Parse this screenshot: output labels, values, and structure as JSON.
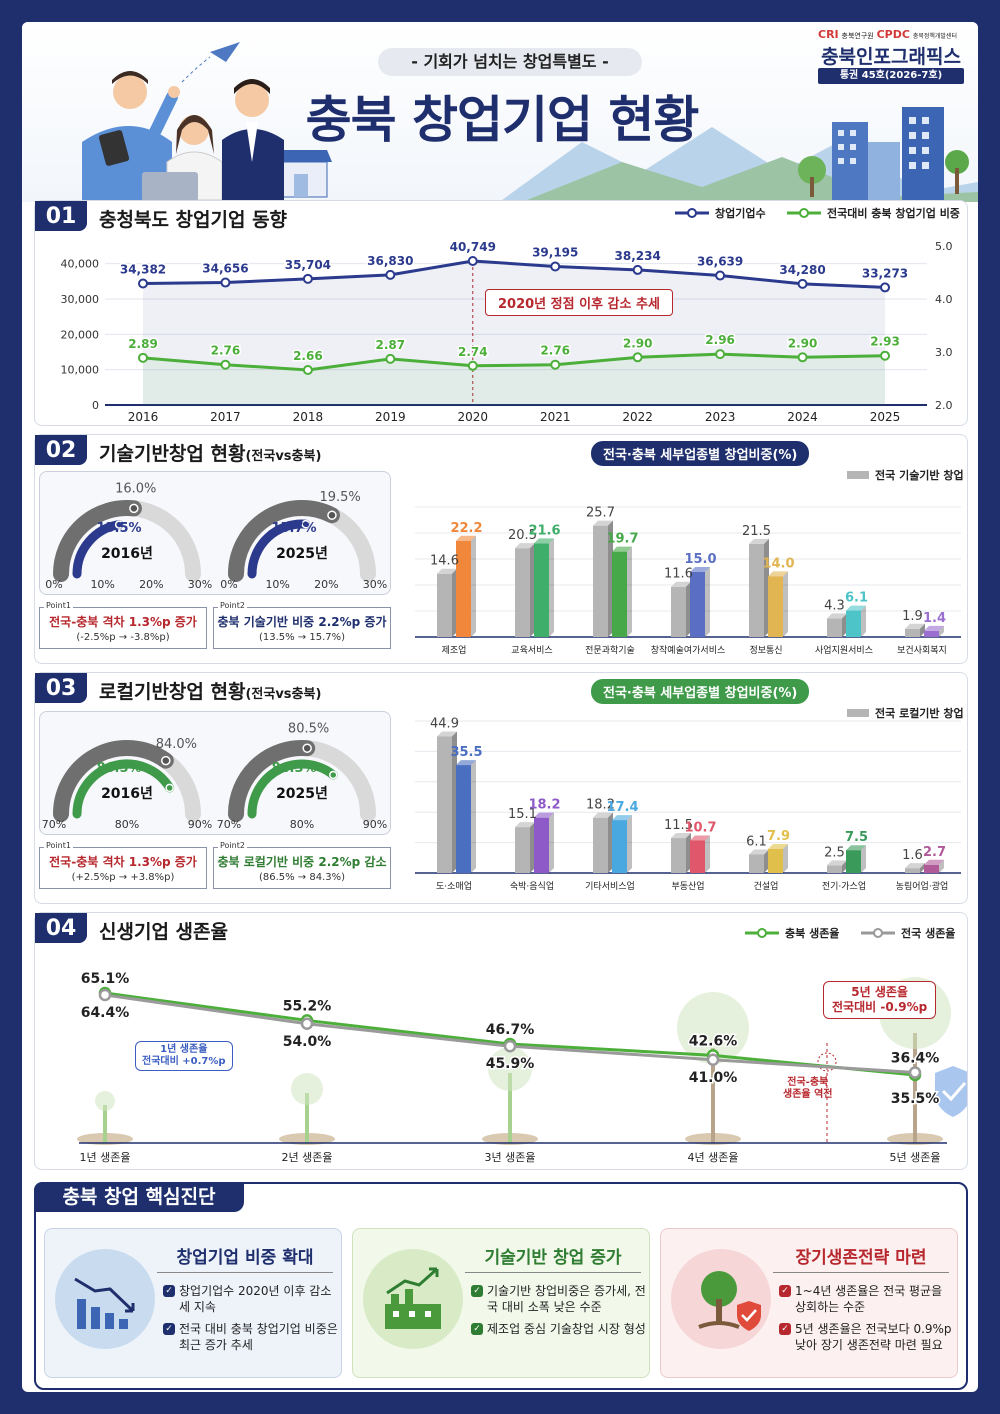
{
  "header": {
    "subtitle": "- 기회가 넘치는 창업특별도 -",
    "title": "충북 창업기업 현황",
    "org1": "CRI",
    "org1_name": "충북연구원",
    "org2": "CPDC",
    "org2_name": "충북정책개발센터",
    "series": "충북인포그래픽스",
    "issue": "통권 45호(2026-7호)"
  },
  "section1": {
    "num": "01",
    "title": "충청북도 창업기업 동향",
    "legend_count": "창업기업수",
    "legend_share": "전국대비 충북 창업기업 비중",
    "callout": "2020년 정점 이후 감소 추세",
    "chart_data": {
      "type": "line",
      "x": [
        "2016",
        "2017",
        "2018",
        "2019",
        "2020",
        "2021",
        "2022",
        "2023",
        "2024",
        "2025"
      ],
      "series": [
        {
          "name": "창업기업수",
          "axis": "left",
          "values": [
            34382,
            34656,
            35704,
            36830,
            40749,
            39195,
            38234,
            36639,
            34280,
            33273
          ],
          "labels": [
            "34,382",
            "34,656",
            "35,704",
            "36,830",
            "40,749",
            "39,195",
            "38,234",
            "36,639",
            "34,280",
            "33,273"
          ],
          "color": "#2b3a8c"
        },
        {
          "name": "전국대비 충북 창업기업 비중",
          "axis": "right",
          "values": [
            2.89,
            2.76,
            2.66,
            2.87,
            2.74,
            2.76,
            2.9,
            2.96,
            2.9,
            2.93
          ],
          "labels": [
            "2.89",
            "2.76",
            "2.66",
            "2.87",
            "2.74",
            "2.76",
            "2.90",
            "2.96",
            "2.90",
            "2.93"
          ],
          "color": "#4caf3a"
        }
      ],
      "y_left_ticks": [
        "0",
        "10,000",
        "20,000",
        "30,000",
        "40,000"
      ],
      "y_right_ticks": [
        "2.0",
        "3.0",
        "4.0",
        "5.0"
      ],
      "ylim_left": [
        0,
        45000
      ],
      "ylim_right": [
        2.0,
        5.0
      ]
    }
  },
  "section2": {
    "num": "02",
    "title": "기술기반창업 현황",
    "title_suffix": "(전국vs충북)",
    "pill": "전국·충북 세부업종별 창업비중(%)",
    "legend": "전국 기술기반 창업",
    "gauges": [
      {
        "year": "2016년",
        "national": "16.0%",
        "local": "13.5%",
        "national_v": 16.0,
        "local_v": 13.5,
        "ticks": [
          "0%",
          "10%",
          "20%",
          "30%"
        ],
        "min": 0,
        "max": 30
      },
      {
        "year": "2025년",
        "national": "19.5%",
        "local": "15.7%",
        "national_v": 19.5,
        "local_v": 15.7,
        "ticks": [
          "0%",
          "10%",
          "20%",
          "30%"
        ],
        "min": 0,
        "max": 30
      }
    ],
    "points": [
      {
        "label": "Point1",
        "main": "전국-충북 격차 1.3%p 증가",
        "sub": "(-2.5%p → -3.8%p)"
      },
      {
        "label": "Point2",
        "main": "충북 기술기반 비중 2.2%p 증가",
        "sub": "(13.5% → 15.7%)"
      }
    ],
    "chart_data": {
      "type": "bar",
      "categories": [
        "제조업",
        "교육서비스",
        "전문과학기술",
        "창작예술여가서비스",
        "정보통신",
        "사업지원서비스",
        "보건사회복지"
      ],
      "series": [
        {
          "name": "전국 기술기반 창업",
          "values": [
            14.6,
            20.5,
            25.7,
            11.6,
            21.5,
            4.3,
            1.9
          ]
        },
        {
          "name": "충북",
          "values": [
            22.2,
            21.6,
            19.7,
            15.0,
            14.0,
            6.1,
            1.4
          ]
        }
      ],
      "local_labels": [
        "22.2",
        "21.6",
        "19.7",
        "15.0",
        "14.0",
        "6.1",
        "1.4"
      ],
      "national_labels": [
        "14.6",
        "20.5",
        "25.7",
        "11.6",
        "21.5",
        "4.3",
        "1.9"
      ],
      "colors": [
        "#f0873a",
        "#3fae6a",
        "#47a84a",
        "#5a6fc4",
        "#e2b553",
        "#4cc4c8",
        "#9a6fd0"
      ],
      "ylim": [
        0,
        30
      ]
    }
  },
  "section3": {
    "num": "03",
    "title": "로컬기반창업 현황",
    "title_suffix": "(전국vs충북)",
    "pill": "전국·충북 세부업종별 창업비중(%)",
    "legend": "전국 로컬기반 창업",
    "gauges": [
      {
        "year": "2016년",
        "national": "84.0%",
        "local": "86.5%",
        "national_v": 84.0,
        "local_v": 86.5,
        "ticks": [
          "70%",
          "80%",
          "90%"
        ],
        "min": 70,
        "max": 90
      },
      {
        "year": "2025년",
        "national": "80.5%",
        "local": "84.3%",
        "national_v": 80.5,
        "local_v": 84.3,
        "ticks": [
          "70%",
          "80%",
          "90%"
        ],
        "min": 70,
        "max": 90
      }
    ],
    "points": [
      {
        "label": "Point1",
        "main": "전국-충북 격차 1.3%p 증가",
        "sub": "(+2.5%p → +3.8%p)"
      },
      {
        "label": "Point2",
        "main": "충북 로컬기반 비중 2.2%p 감소",
        "sub": "(86.5% → 84.3%)"
      }
    ],
    "chart_data": {
      "type": "bar",
      "categories": [
        "도·소매업",
        "숙박·음식업",
        "기타서비스업",
        "부동산업",
        "건설업",
        "전기·가스업",
        "농림어업·광업"
      ],
      "series": [
        {
          "name": "전국 로컬기반 창업",
          "values": [
            44.9,
            15.1,
            18.2,
            11.5,
            6.1,
            2.5,
            1.6
          ]
        },
        {
          "name": "충북",
          "values": [
            35.5,
            18.2,
            17.4,
            10.7,
            7.9,
            7.5,
            2.7
          ]
        }
      ],
      "local_labels": [
        "35.5",
        "18.2",
        "17.4",
        "10.7",
        "7.9",
        "7.5",
        "2.7"
      ],
      "national_labels": [
        "44.9",
        "15.1",
        "18.2",
        "11.5",
        "6.1",
        "2.5",
        "1.6"
      ],
      "colors": [
        "#4a6fc0",
        "#8e5ac8",
        "#4aa8e0",
        "#e0566a",
        "#e0bf4a",
        "#3a9a5a",
        "#b05a9a"
      ],
      "ylim": [
        0,
        50
      ]
    }
  },
  "section4": {
    "num": "04",
    "title": "신생기업 생존율",
    "legend_local": "충북 생존율",
    "legend_nat": "전국 생존율",
    "callout1": "1년 생존율",
    "callout1b": "전국대비 +0.7%p",
    "callout5": "5년 생존율",
    "callout5b": "전국대비 -0.9%p",
    "reverse": "전국-충북",
    "reverse2": "생존율 역전",
    "chart_data": {
      "type": "line",
      "categories": [
        "1년 생존율",
        "2년 생존율",
        "3년 생존율",
        "4년 생존율",
        "5년 생존율"
      ],
      "series": [
        {
          "name": "충북 생존율",
          "values": [
            65.1,
            55.2,
            46.7,
            42.6,
            35.5
          ],
          "labels": [
            "65.1%",
            "55.2%",
            "46.7%",
            "42.6%",
            "35.5%"
          ]
        },
        {
          "name": "전국 생존율",
          "values": [
            64.4,
            54.0,
            45.9,
            41.0,
            36.4
          ],
          "labels": [
            "64.4%",
            "54.0%",
            "45.9%",
            "41.0%",
            "36.4%"
          ]
        }
      ]
    }
  },
  "diagnosis": {
    "title": "충북 창업 핵심진단",
    "cards": [
      {
        "title": "창업기업 비중 확대",
        "items": [
          "창업기업수 2020년 이후 감소세 지속",
          "전국 대비 충북 창업기업 비중은 최근 증가 추세"
        ]
      },
      {
        "title": "기술기반 창업 증가",
        "items": [
          "기술기반 창업비중은 증가세, 전국 대비 소폭 낮은 수준",
          "제조업 중심 기술창업 시장 형성"
        ]
      },
      {
        "title": "장기생존전략 마련",
        "items": [
          "1~4년 생존율은 전국 평균을 상회하는 수준",
          "5년 생존율은 전국보다 0.9%p 낮아 장기 생존전략 마련 필요"
        ]
      }
    ]
  }
}
